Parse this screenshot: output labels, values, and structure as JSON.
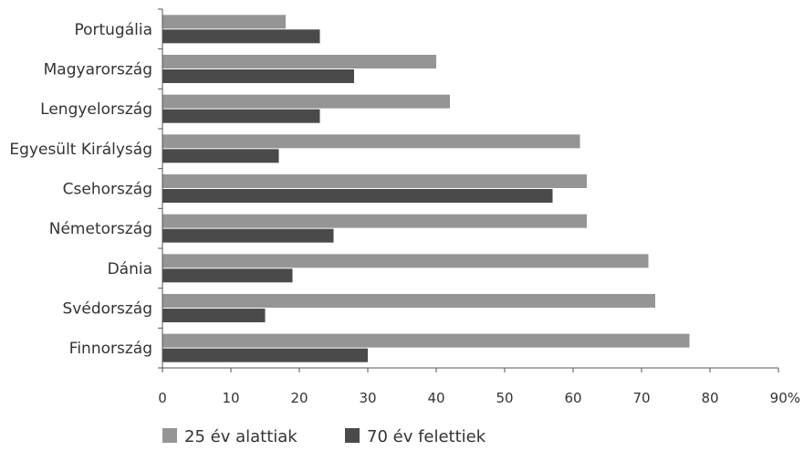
{
  "chart_data": {
    "type": "bar",
    "orientation": "horizontal",
    "categories": [
      "Portugália",
      "Magyarország",
      "Lengyelország",
      "Egyesült Királyság",
      "Csehország",
      "Németország",
      "Dánia",
      "Svédország",
      "Finnország"
    ],
    "series": [
      {
        "name": "25 év alattiak",
        "color": "#959595",
        "values": [
          18,
          40,
          42,
          61,
          62,
          62,
          71,
          72,
          77
        ]
      },
      {
        "name": "70 év felettiek",
        "color": "#4a4a4a",
        "values": [
          23,
          28,
          23,
          17,
          57,
          25,
          19,
          15,
          30
        ]
      }
    ],
    "xlim": [
      0,
      90
    ],
    "xticks": [
      "0",
      "10",
      "20",
      "30",
      "40",
      "50",
      "60",
      "70",
      "80",
      "90%"
    ],
    "grid": false,
    "legend": "bottom-left"
  }
}
